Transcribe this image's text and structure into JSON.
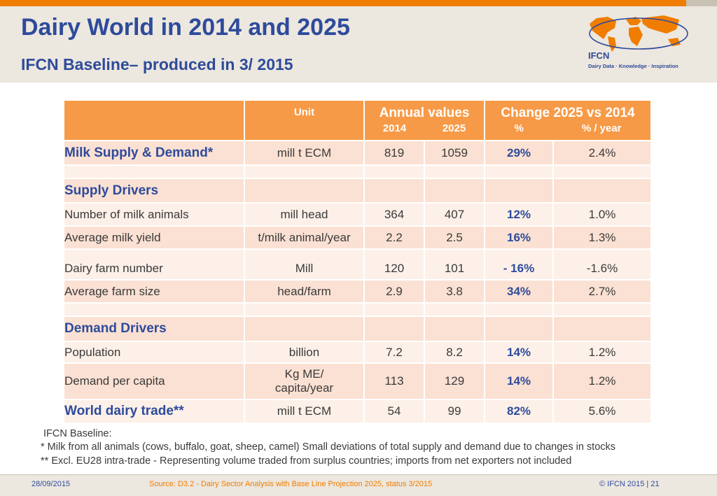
{
  "header": {
    "title": "Dairy World in 2014 and 2025",
    "subtitle": "IFCN Baseline– produced in 3/ 2015"
  },
  "logo": {
    "name": "IFCN",
    "tagline": "Dairy Data · Knowledge · Inspiration"
  },
  "table": {
    "head": {
      "unit": "Unit",
      "annual": "Annual values",
      "y2014": "2014",
      "y2025": "2025",
      "change": "Change 2025 vs 2014",
      "pct": "%",
      "pct_year": "% / year"
    },
    "rows": {
      "milk": {
        "label": "Milk Supply & Demand*",
        "unit": "mill t ECM",
        "v2014": "819",
        "v2025": "1059",
        "pct": "29%",
        "pct_year": "2.4%"
      },
      "supply_section": "Supply Drivers",
      "animals": {
        "label": "Number of milk animals",
        "unit": "mill head",
        "v2014": "364",
        "v2025": "407",
        "pct": "12%",
        "pct_year": "1.0%"
      },
      "yield": {
        "label": "Average milk yield",
        "unit": "t/milk animal/year",
        "v2014": "2.2",
        "v2025": "2.5",
        "pct": "16%",
        "pct_year": "1.3%"
      },
      "farms": {
        "label": "Dairy farm number",
        "unit": "Mill",
        "v2014": "120",
        "v2025": "101",
        "pct": "- 16%",
        "pct_year": "-1.6%"
      },
      "farmsize": {
        "label": "Average farm size",
        "unit": "head/farm",
        "v2014": "2.9",
        "v2025": "3.8",
        "pct": "34%",
        "pct_year": "2.7%"
      },
      "demand_section": "Demand Drivers",
      "population": {
        "label": "Population",
        "unit": "billion",
        "v2014": "7.2",
        "v2025": "8.2",
        "pct": "14%",
        "pct_year": "1.2%"
      },
      "capita": {
        "label": "Demand per capita",
        "unit_line1": "Kg ME/",
        "unit_line2": "capita/year",
        "v2014": "113",
        "v2025": "129",
        "pct": "14%",
        "pct_year": "1.2%"
      },
      "trade": {
        "label": "World dairy trade**",
        "unit": "mill t ECM",
        "v2014": "54",
        "v2025": "99",
        "pct": "82%",
        "pct_year": "5.6%"
      }
    }
  },
  "footnotes": {
    "line1": "IFCN Baseline:",
    "line2": " * Milk from all animals (cows, buffalo, goat, sheep, camel) Small deviations of total supply and demand due to changes in stocks",
    "line3": "** Excl. EU28 intra-trade - Representing volume traded from surplus countries; imports from net exporters not included"
  },
  "footer": {
    "date": "28/09/2015",
    "source": "Source: D3.2 - Dairy Sector Analysis with Base Line Projection 2025, status 3/2015",
    "copyright": "© IFCN  2015 | 21"
  },
  "colors": {
    "accent": "#f07d00",
    "title": "#2e4b9b",
    "header_cell": "#f79a47",
    "row_dark": "#fbe1d3",
    "row_light": "#fdf0e8"
  }
}
